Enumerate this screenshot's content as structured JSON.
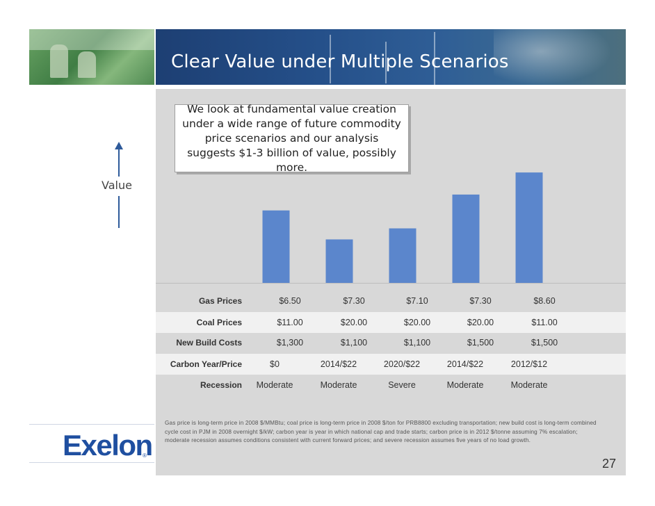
{
  "slide": {
    "title": "Clear Value under Multiple Scenarios",
    "callout": "We look at fundamental value creation under a wide range of future commodity price scenarios and our analysis suggests $1-3 billion of value, possibly more.",
    "value_axis_label": "Value",
    "page_number": "27",
    "logo_text": "Exelon",
    "logo_mark": "®",
    "footnote": "Gas price is long-term price in 2008 $/MMBtu; coal price is long-term price in 2008 $/ton for PRB8800 excluding transportation; new build cost is long-term combined cycle cost in PJM in 2008 overnight $/kW; carbon year is year in which national cap and trade starts; carbon price is in 2012 $/tonne assuming 7% escalation; moderate recession assumes conditions consistent with current forward prices; and severe recession assumes five years of no load growth."
  },
  "table": {
    "rows": [
      {
        "label": "Gas Prices",
        "values": [
          "$6.50",
          "$7.30",
          "$7.10",
          "$7.30",
          "$8.60"
        ]
      },
      {
        "label": "Coal Prices",
        "values": [
          "$11.00",
          "$20.00",
          "$20.00",
          "$20.00",
          "$11.00"
        ]
      },
      {
        "label": "New Build Costs",
        "values": [
          "$1,300",
          "$1,100",
          "$1,100",
          "$1,500",
          "$1,500"
        ]
      },
      {
        "label": "Carbon Year/Price",
        "values": [
          "$0",
          "2014/$22",
          "2020/$22",
          "2014/$22",
          "2012/$12"
        ]
      },
      {
        "label": "Recession",
        "values": [
          "Moderate",
          "Moderate",
          "Severe",
          "Moderate",
          "Moderate"
        ]
      }
    ]
  },
  "chart_data": {
    "type": "bar",
    "categories": [
      "",
      "",
      "",
      "",
      ""
    ],
    "values": [
      105,
      63,
      79,
      128,
      160
    ],
    "ylim": [
      0,
      280
    ],
    "bar_color": "#5b86cc",
    "grid": false,
    "legend": "none"
  }
}
